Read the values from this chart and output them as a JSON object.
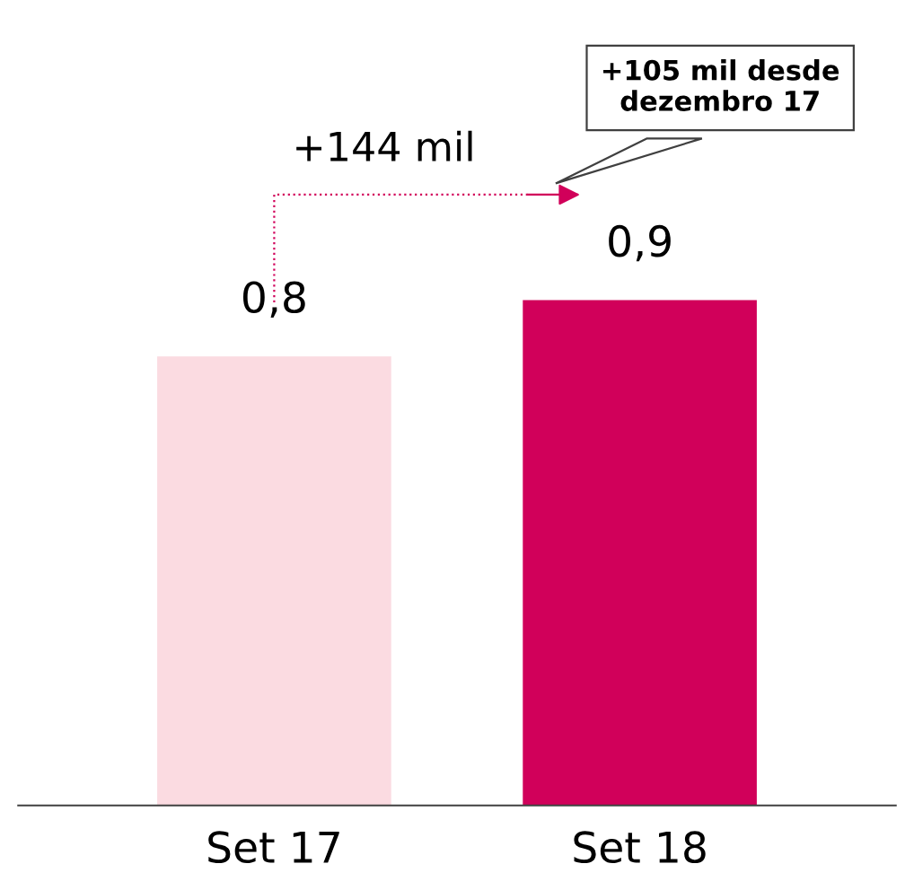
{
  "chart_data": {
    "type": "bar",
    "categories": [
      "Set 17",
      "Set 18"
    ],
    "values": [
      0.8,
      0.9
    ],
    "value_labels": [
      "0,8",
      "0,9"
    ],
    "colors": [
      "#fbdbe1",
      "#d1005a"
    ],
    "annotations": [
      "+144 mil",
      "+105 mil desde dezembro 17"
    ],
    "grid": false,
    "legend": false
  }
}
